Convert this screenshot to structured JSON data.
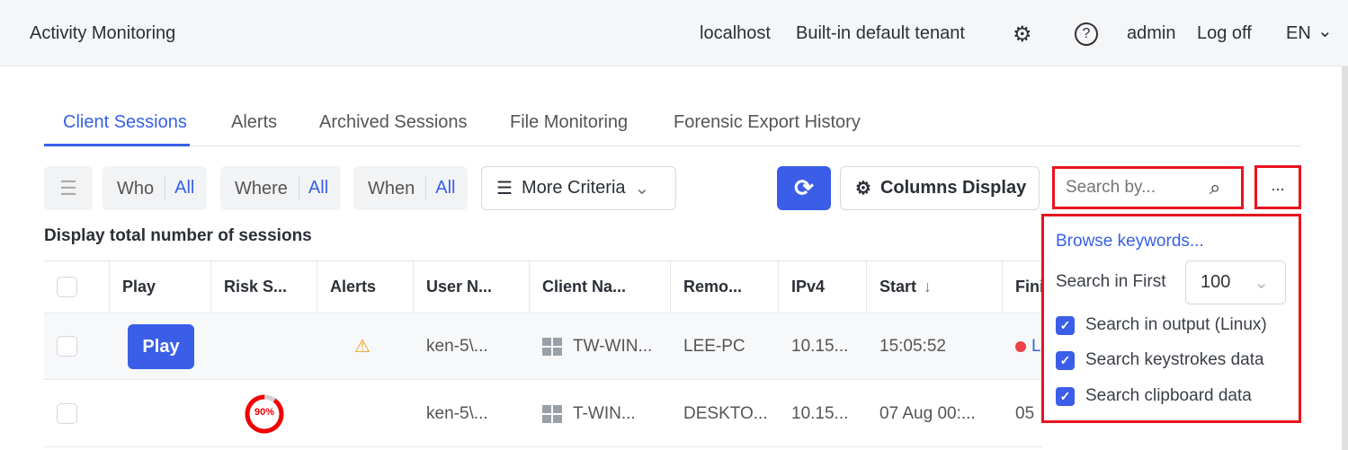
{
  "header": {
    "title": "Activity Monitoring",
    "host": "localhost",
    "tenant": "Built-in default tenant",
    "user": "admin",
    "logoff": "Log off",
    "lang": "EN"
  },
  "tabs": [
    {
      "label": "Client Sessions",
      "active": true
    },
    {
      "label": "Alerts"
    },
    {
      "label": "Archived Sessions"
    },
    {
      "label": "File Monitoring"
    },
    {
      "label": "Forensic Export History"
    }
  ],
  "filters": {
    "who": "Who",
    "who_val": "All",
    "where": "Where",
    "where_val": "All",
    "when": "When",
    "when_val": "All",
    "more": "More Criteria"
  },
  "toolbar": {
    "columns": "Columns Display",
    "search_placeholder": "Search by...",
    "more": "..."
  },
  "total_label": "Display total number of sessions",
  "columns": [
    "Play",
    "Risk S...",
    "Alerts",
    "User N...",
    "Client Na...",
    "Remo...",
    "IPv4",
    "Start",
    "Fini"
  ],
  "rows": [
    {
      "play": "Play",
      "alert": "warning-icon",
      "user": "ken-5\\...",
      "client": "TW-WIN...",
      "remote": "LEE-PC",
      "ipv4": "10.15...",
      "start": "15:05:52",
      "finish": "L",
      "live": true
    },
    {
      "risk": "90%",
      "risk_value": 90,
      "user": "ken-5\\...",
      "client": "T-WIN...",
      "remote": "DESKTO...",
      "ipv4": "10.15...",
      "start": "07 Aug 00:...",
      "finish": "05"
    }
  ],
  "dropdown": {
    "browse": "Browse keywords...",
    "search_first_label": "Search in First",
    "search_first_value": "100",
    "options": [
      {
        "label": "Search in output (Linux)",
        "checked": true
      },
      {
        "label": "Search keystrokes data",
        "checked": true
      },
      {
        "label": "Search clipboard data",
        "checked": true
      }
    ]
  },
  "colors": {
    "accent": "#3b5ee8",
    "highlight": "#e8141f",
    "risk": "#f00000",
    "warning": "#f0a020"
  }
}
